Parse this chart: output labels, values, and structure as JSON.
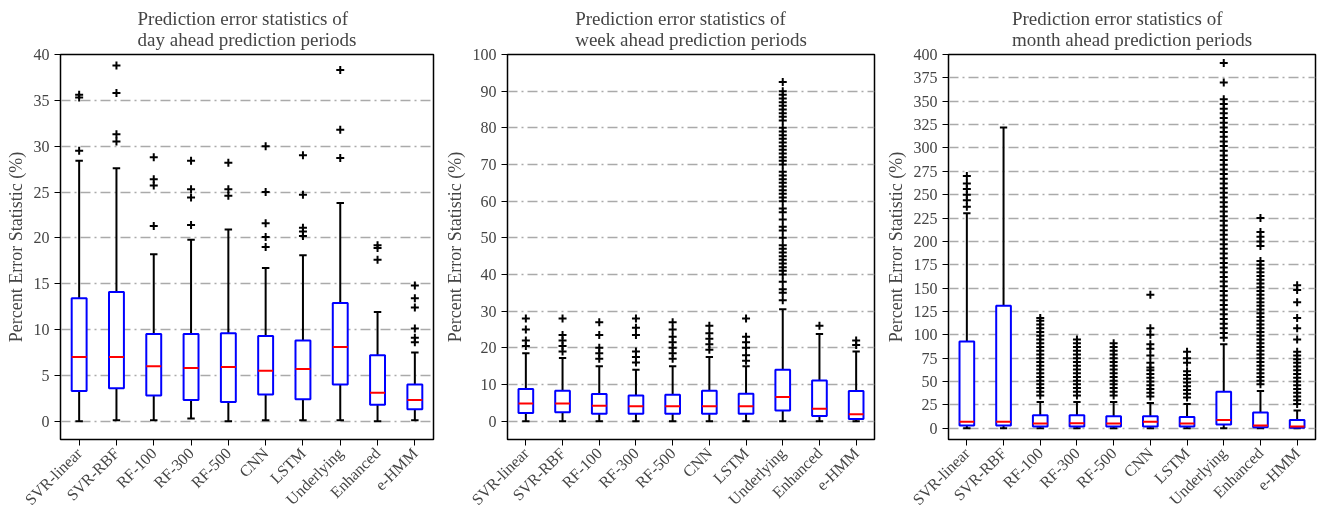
{
  "chart_data": [
    {
      "type": "box",
      "title": "Prediction error statistics of\nday ahead prediction periods",
      "ylabel": "Percent Error Statistic (%)",
      "categories": [
        "SVR-linear",
        "SVR-RBF",
        "RF-100",
        "RF-300",
        "RF-500",
        "CNN",
        "LSTM",
        "Underlying",
        "Enhanced",
        "e-HMM"
      ],
      "color": "#0000ff",
      "ylim": [
        -2,
        40
      ],
      "yticks": [
        0,
        5,
        10,
        15,
        20,
        25,
        30,
        35,
        40
      ],
      "grid": "y",
      "marker": "cross",
      "boxes": [
        {
          "low": 0,
          "q1": 3.3,
          "median": 7,
          "q3": 13.4,
          "high": 28.4,
          "outliers": [
            29.5,
            35.3,
            35.6
          ]
        },
        {
          "low": 0.1,
          "q1": 3.6,
          "median": 7,
          "q3": 14.1,
          "high": 27.6,
          "outliers": [
            30.5,
            31.3,
            35.8,
            38.8
          ]
        },
        {
          "low": 0.1,
          "q1": 2.8,
          "median": 6,
          "q3": 9.5,
          "high": 18.2,
          "outliers": [
            21.3,
            25.7,
            26.4,
            28.8
          ]
        },
        {
          "low": 0.3,
          "q1": 2.3,
          "median": 5.8,
          "q3": 9.5,
          "high": 19.8,
          "outliers": [
            21.4,
            24.4,
            25.3,
            28.4
          ]
        },
        {
          "low": 0,
          "q1": 2.1,
          "median": 5.9,
          "q3": 9.6,
          "high": 20.9,
          "outliers": [
            24.6,
            25.3,
            28.2
          ]
        },
        {
          "low": 0.1,
          "q1": 2.9,
          "median": 5.5,
          "q3": 9.3,
          "high": 16.7,
          "outliers": [
            19.0,
            20.1,
            21.6,
            25.0,
            30.0
          ]
        },
        {
          "low": 0.1,
          "q1": 2.4,
          "median": 5.7,
          "q3": 8.8,
          "high": 18.1,
          "outliers": [
            20.2,
            20.7,
            21.1,
            24.7,
            29.0
          ]
        },
        {
          "low": 0.1,
          "q1": 4.0,
          "median": 8.1,
          "q3": 12.9,
          "high": 23.8,
          "outliers": [
            28.7,
            31.8,
            38.3
          ]
        },
        {
          "low": 0,
          "q1": 1.8,
          "median": 3.1,
          "q3": 7.2,
          "high": 11.9,
          "outliers": [
            17.6,
            18.9,
            19.2
          ]
        },
        {
          "low": 0.1,
          "q1": 1.3,
          "median": 2.3,
          "q3": 4.0,
          "high": 7.5,
          "outliers": [
            8.6,
            9.1,
            10.1,
            12.4,
            13.4,
            14.8
          ]
        }
      ]
    },
    {
      "type": "box",
      "title": "Prediction error statistics of\nweek ahead prediction periods",
      "ylabel": "Percent Error Statistic (%)",
      "categories": [
        "SVR-linear",
        "SVR-RBF",
        "RF-100",
        "RF-300",
        "RF-500",
        "CNN",
        "LSTM",
        "Underlying",
        "Enhanced",
        "e-HMM"
      ],
      "color": "#0000ff",
      "ylim": [
        -5,
        100
      ],
      "yticks": [
        0,
        10,
        20,
        30,
        40,
        50,
        60,
        70,
        80,
        90,
        100
      ],
      "grid": "y",
      "marker": "cross",
      "boxes": [
        {
          "low": 0,
          "q1": 2.2,
          "median": 4.8,
          "q3": 8.8,
          "high": 18.5,
          "outliers": [
            20.5,
            22,
            25,
            28
          ]
        },
        {
          "low": 0,
          "q1": 2.4,
          "median": 4.8,
          "q3": 8.3,
          "high": 17.2,
          "outliers": [
            19,
            20.5,
            22,
            23.5,
            28
          ]
        },
        {
          "low": 0,
          "q1": 2,
          "median": 4.2,
          "q3": 7.4,
          "high": 15,
          "outliers": [
            17,
            18.5,
            20,
            23.5,
            27
          ]
        },
        {
          "low": 0,
          "q1": 2,
          "median": 4.1,
          "q3": 7,
          "high": 14,
          "outliers": [
            16,
            17.5,
            19,
            23.5,
            25.5,
            28
          ]
        },
        {
          "low": 0,
          "q1": 2,
          "median": 4.1,
          "q3": 7.2,
          "high": 15,
          "outliers": [
            17,
            18.5,
            20,
            21.5,
            23,
            25,
            27
          ]
        },
        {
          "low": 0,
          "q1": 2,
          "median": 4.1,
          "q3": 8.3,
          "high": 17.5,
          "outliers": [
            19.5,
            21,
            22.5,
            24,
            26
          ]
        },
        {
          "low": 0,
          "q1": 2,
          "median": 4.1,
          "q3": 7.5,
          "high": 15,
          "outliers": [
            16.5,
            18,
            20,
            21.5,
            23,
            28
          ]
        },
        {
          "low": 0,
          "q1": 2.9,
          "median": 6.6,
          "q3": 14,
          "high": 30.5,
          "outliers": [
            33,
            35,
            36,
            38,
            40,
            41,
            42,
            43,
            44,
            45,
            46,
            47,
            48,
            50,
            52,
            53,
            55,
            57,
            58,
            60,
            61,
            62,
            63,
            64,
            65,
            66,
            67,
            68,
            70,
            71,
            72,
            73,
            74,
            75,
            76,
            77,
            78,
            79,
            80,
            82,
            83,
            84,
            85,
            86,
            87,
            88,
            89,
            90,
            92.5
          ]
        },
        {
          "low": 0,
          "q1": 1.4,
          "median": 3.4,
          "q3": 11.1,
          "high": 23.8,
          "outliers": [
            26
          ]
        },
        {
          "low": 0,
          "q1": 0.6,
          "median": 1.9,
          "q3": 8.2,
          "high": 19,
          "outliers": [
            20.8,
            22
          ]
        }
      ]
    },
    {
      "type": "box",
      "title": "Prediction error statistics of\nmonth ahead prediction periods",
      "ylabel": "Percent Error Statistic (%)",
      "categories": [
        "SVR-linear",
        "SVR-RBF",
        "RF-100",
        "RF-300",
        "RF-500",
        "CNN",
        "LSTM",
        "Underlying",
        "Enhanced",
        "e-HMM"
      ],
      "color": "#0000ff",
      "ylim": [
        -12,
        400
      ],
      "yticks": [
        0,
        25,
        50,
        75,
        100,
        125,
        150,
        175,
        200,
        225,
        250,
        275,
        300,
        325,
        350,
        375,
        400
      ],
      "grid": "y",
      "marker": "cross",
      "boxes": [
        {
          "low": 0,
          "q1": 3,
          "median": 7,
          "q3": 93,
          "high": 230,
          "outliers": [
            237,
            244,
            250,
            256,
            262,
            270
          ]
        },
        {
          "low": 0,
          "q1": 3,
          "median": 7,
          "q3": 131,
          "high": 322
        },
        {
          "low": 0,
          "q1": 2,
          "median": 5,
          "q3": 14,
          "high": 28,
          "outliers": [
            35,
            39,
            43,
            47,
            51,
            55,
            59,
            63,
            67,
            71,
            75,
            79,
            83,
            87,
            91,
            95,
            99,
            103,
            107,
            111,
            115,
            118
          ]
        },
        {
          "low": 0,
          "q1": 2,
          "median": 5.5,
          "q3": 14,
          "high": 28,
          "outliers": [
            35,
            39,
            43,
            47,
            51,
            55,
            59,
            63,
            67,
            71,
            75,
            79,
            83,
            87,
            91,
            95
          ]
        },
        {
          "low": 0,
          "q1": 2,
          "median": 5,
          "q3": 13,
          "high": 28,
          "outliers": [
            35,
            39,
            43,
            47,
            51,
            55,
            59,
            63,
            67,
            71,
            75,
            79,
            83,
            87,
            91
          ]
        },
        {
          "low": 0,
          "q1": 2,
          "median": 7,
          "q3": 13,
          "high": 27,
          "outliers": [
            34,
            38,
            42,
            46,
            50,
            54,
            58,
            62,
            65,
            70,
            78,
            85,
            90,
            100,
            107,
            143
          ]
        },
        {
          "low": 0,
          "q1": 2,
          "median": 5,
          "q3": 12,
          "high": 26,
          "outliers": [
            33,
            37,
            41,
            45,
            49,
            53,
            57,
            61,
            70,
            75,
            82
          ]
        },
        {
          "low": 0,
          "q1": 4,
          "median": 9,
          "q3": 39,
          "high": 90,
          "outliers": [
            97,
            102,
            107,
            112,
            117,
            122,
            127,
            132,
            137,
            142,
            147,
            152,
            157,
            162,
            167,
            172,
            177,
            182,
            187,
            192,
            197,
            202,
            207,
            212,
            217,
            222,
            227,
            232,
            237,
            242,
            247,
            252,
            257,
            262,
            267,
            272,
            277,
            282,
            287,
            292,
            297,
            302,
            307,
            312,
            317,
            322,
            327,
            332,
            337,
            342,
            347,
            352,
            370,
            391
          ]
        },
        {
          "low": 0,
          "q1": 1,
          "median": 3,
          "q3": 17,
          "high": 40,
          "outliers": [
            47,
            51,
            55,
            59,
            63,
            67,
            71,
            75,
            79,
            83,
            87,
            91,
            95,
            99,
            103,
            107,
            111,
            115,
            119,
            123,
            127,
            131,
            135,
            139,
            143,
            147,
            151,
            155,
            159,
            163,
            167,
            171,
            175,
            179,
            195,
            200,
            205,
            210,
            225
          ]
        },
        {
          "low": 0,
          "q1": 0.5,
          "median": 2,
          "q3": 9,
          "high": 19,
          "outliers": [
            26,
            30,
            34,
            38,
            42,
            46,
            50,
            54,
            58,
            62,
            66,
            70,
            74,
            78,
            82,
            95,
            107,
            118,
            135,
            148,
            153
          ]
        }
      ]
    }
  ]
}
